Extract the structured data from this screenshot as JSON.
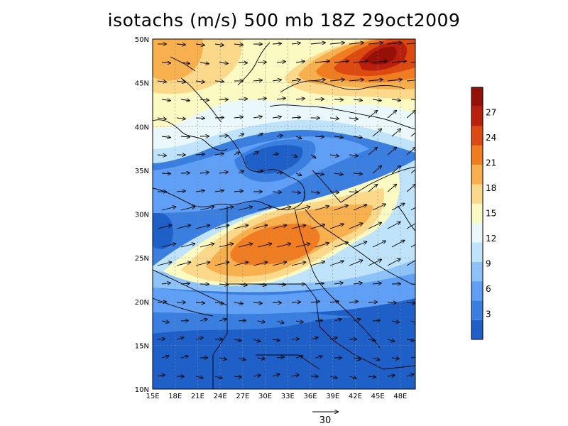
{
  "title": "isotachs (m/s) 500 mb 18Z 29oct2009",
  "colors": {
    "levels": [
      "#1f5fc8",
      "#3a7fe0",
      "#5f9ff5",
      "#8ec3fa",
      "#bfe3fb",
      "#eaf8fc",
      "#fbfac2",
      "#fbd88a",
      "#f8b04e",
      "#f07d22",
      "#dc4a12",
      "#ba1e0c",
      "#961008"
    ],
    "bounds": [
      0,
      3,
      6,
      9,
      12,
      15,
      18,
      21,
      24,
      27
    ]
  },
  "map": {
    "lon_labels": [
      "15E",
      "18E",
      "21E",
      "24E",
      "27E",
      "30E",
      "33E",
      "36E",
      "39E",
      "42E",
      "45E",
      "48E"
    ],
    "lat_labels": [
      "10N",
      "15N",
      "20N",
      "25N",
      "30N",
      "35N",
      "40N",
      "45N",
      "50N"
    ],
    "lon_range": [
      15,
      50
    ],
    "lat_range": [
      10,
      50
    ]
  },
  "colorbar": {
    "labels": [
      "3",
      "6",
      "9",
      "12",
      "15",
      "18",
      "21",
      "24",
      "27"
    ],
    "colors": [
      "#1f5fc8",
      "#3a7fe0",
      "#5f9ff5",
      "#8ec3fa",
      "#bfe3fb",
      "#eaf8fc",
      "#fbfac2",
      "#fbd88a",
      "#f8b04e",
      "#f07d22",
      "#dc4a12",
      "#ba1e0c",
      "#961008"
    ]
  },
  "reference_vector": {
    "label": "30"
  }
}
